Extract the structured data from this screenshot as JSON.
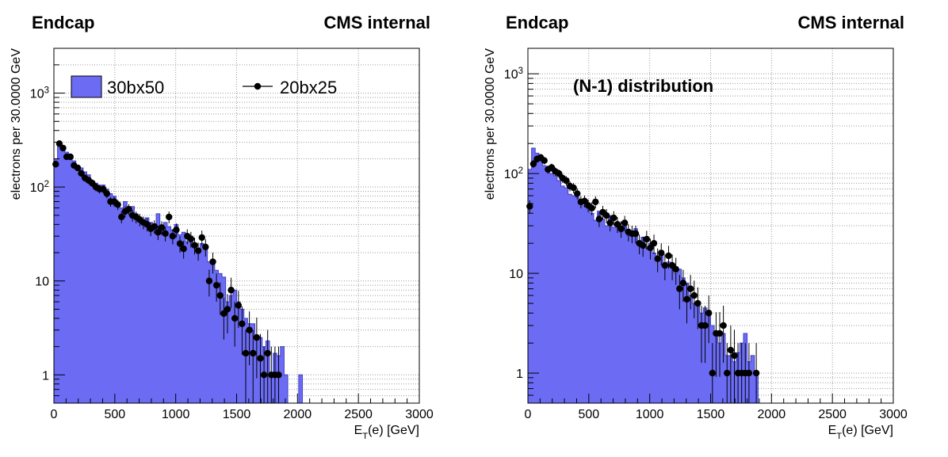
{
  "colors": {
    "fill": "#6b6bf4",
    "edge": "#3f3fc8",
    "points": "#000000",
    "grid": "#9a9a9a"
  },
  "chart_data": [
    {
      "type": "histogram",
      "title": "Endcap",
      "corner_label": "CMS internal",
      "annotation": "",
      "xlabel": "E_T(e) [GeV]",
      "ylabel": "electrons per 30.0000 GeV",
      "xlim": [
        0,
        3000
      ],
      "ylim": [
        0.5,
        3000
      ],
      "yscale": "log",
      "grid": true,
      "bin_width": 30,
      "xticks": [
        0,
        500,
        1000,
        1500,
        2000,
        2500,
        3000
      ],
      "yticks": [
        {
          "value": 1,
          "label": "1"
        },
        {
          "value": 10,
          "label": "10"
        },
        {
          "value": 100,
          "label": "10^2"
        },
        {
          "value": 1000,
          "label": "10^3"
        }
      ],
      "legend": {
        "entries": [
          "30bx50",
          "20bx25"
        ],
        "placement": "top"
      },
      "series": [
        {
          "name": "30bx50",
          "style": "filled-histogram",
          "values": [
            195,
            285,
            270,
            235,
            215,
            190,
            170,
            160,
            145,
            135,
            115,
            110,
            105,
            105,
            95,
            85,
            80,
            68,
            60,
            70,
            58,
            62,
            52,
            48,
            44,
            47,
            42,
            38,
            52,
            34,
            42,
            38,
            35,
            40,
            31,
            33,
            26,
            30,
            24,
            22,
            25,
            24,
            16,
            15,
            13,
            12,
            11,
            6,
            7,
            8,
            6,
            5,
            4,
            3.5,
            3.5,
            2.5,
            2.5,
            2,
            2.3,
            1,
            1.7,
            1.6,
            2,
            1,
            0,
            0,
            0,
            1
          ]
        },
        {
          "name": "20bx25",
          "style": "points-with-errors",
          "points": [
            [
              15,
              175
            ],
            [
              45,
              290
            ],
            [
              75,
              260
            ],
            [
              105,
              210
            ],
            [
              135,
              210
            ],
            [
              165,
              170
            ],
            [
              195,
              160
            ],
            [
              225,
              140
            ],
            [
              255,
              125
            ],
            [
              285,
              118
            ],
            [
              315,
              110
            ],
            [
              345,
              100
            ],
            [
              375,
              95
            ],
            [
              405,
              95
            ],
            [
              435,
              85
            ],
            [
              465,
              70
            ],
            [
              495,
              70
            ],
            [
              525,
              65
            ],
            [
              555,
              48
            ],
            [
              585,
              55
            ],
            [
              615,
              58
            ],
            [
              645,
              50
            ],
            [
              675,
              48
            ],
            [
              705,
              45
            ],
            [
              735,
              42
            ],
            [
              765,
              40
            ],
            [
              795,
              36
            ],
            [
              825,
              38
            ],
            [
              855,
              33
            ],
            [
              885,
              37
            ],
            [
              915,
              32
            ],
            [
              945,
              48
            ],
            [
              975,
              30
            ],
            [
              1005,
              35
            ],
            [
              1035,
              25
            ],
            [
              1065,
              22
            ],
            [
              1095,
              30
            ],
            [
              1125,
              28
            ],
            [
              1155,
              24
            ],
            [
              1185,
              21
            ],
            [
              1215,
              29
            ],
            [
              1245,
              23
            ],
            [
              1275,
              10
            ],
            [
              1305,
              16
            ],
            [
              1335,
              9
            ],
            [
              1365,
              7
            ],
            [
              1395,
              4.5
            ],
            [
              1425,
              5
            ],
            [
              1455,
              8
            ],
            [
              1485,
              4
            ],
            [
              1515,
              5.5
            ],
            [
              1545,
              3.5
            ],
            [
              1575,
              1.7
            ],
            [
              1605,
              3
            ],
            [
              1635,
              1.7
            ],
            [
              1665,
              2.5
            ],
            [
              1695,
              1.5
            ],
            [
              1725,
              1
            ],
            [
              1755,
              1.7
            ],
            [
              1785,
              1
            ],
            [
              1815,
              1
            ],
            [
              1845,
              1
            ]
          ]
        }
      ]
    },
    {
      "type": "histogram",
      "title": "Endcap",
      "corner_label": "CMS internal",
      "annotation": "(N-1) distribution",
      "xlabel": "E_T(e) [GeV]",
      "ylabel": "electrons per 30.0000 GeV",
      "xlim": [
        0,
        3000
      ],
      "ylim": [
        0.5,
        1800
      ],
      "yscale": "log",
      "grid": true,
      "bin_width": 30,
      "xticks": [
        0,
        500,
        1000,
        1500,
        2000,
        2500,
        3000
      ],
      "yticks": [
        {
          "value": 1,
          "label": "1"
        },
        {
          "value": 10,
          "label": "10"
        },
        {
          "value": 100,
          "label": "10^2"
        },
        {
          "value": 1000,
          "label": "10^3"
        }
      ],
      "legend": null,
      "series": [
        {
          "name": "",
          "style": "filled-histogram",
          "values": [
            110,
            180,
            160,
            140,
            120,
            110,
            100,
            95,
            85,
            75,
            72,
            62,
            60,
            58,
            52,
            48,
            45,
            40,
            34,
            42,
            35,
            30,
            38,
            29,
            30,
            26,
            34,
            24,
            25,
            28,
            21,
            23,
            18,
            20,
            16,
            15,
            17,
            12,
            13,
            12,
            10,
            11,
            9,
            8,
            6,
            5,
            5,
            4,
            4.5,
            4,
            3,
            2.5,
            2,
            2.5,
            1.5,
            1.5,
            1.3,
            1.6,
            2,
            2.5,
            1.3,
            1.5,
            1
          ]
        },
        {
          "name": "",
          "style": "points-with-errors",
          "points": [
            [
              15,
              47
            ],
            [
              45,
              125
            ],
            [
              75,
              140
            ],
            [
              105,
              145
            ],
            [
              135,
              135
            ],
            [
              165,
              110
            ],
            [
              195,
              115
            ],
            [
              225,
              105
            ],
            [
              255,
              100
            ],
            [
              285,
              90
            ],
            [
              315,
              85
            ],
            [
              345,
              75
            ],
            [
              375,
              72
            ],
            [
              405,
              63
            ],
            [
              435,
              52
            ],
            [
              465,
              53
            ],
            [
              495,
              48
            ],
            [
              525,
              45
            ],
            [
              555,
              52
            ],
            [
              585,
              35
            ],
            [
              615,
              41
            ],
            [
              645,
              38
            ],
            [
              675,
              32
            ],
            [
              705,
              36
            ],
            [
              735,
              31
            ],
            [
              765,
              28
            ],
            [
              795,
              32
            ],
            [
              825,
              26
            ],
            [
              855,
              25
            ],
            [
              885,
              25
            ],
            [
              915,
              20
            ],
            [
              945,
              19
            ],
            [
              975,
              22
            ],
            [
              1005,
              18
            ],
            [
              1035,
              20
            ],
            [
              1065,
              14
            ],
            [
              1095,
              16
            ],
            [
              1125,
              12
            ],
            [
              1155,
              15
            ],
            [
              1185,
              12
            ],
            [
              1215,
              11
            ],
            [
              1245,
              7
            ],
            [
              1275,
              8
            ],
            [
              1305,
              5.5
            ],
            [
              1335,
              7
            ],
            [
              1365,
              6
            ],
            [
              1395,
              5
            ],
            [
              1425,
              3
            ],
            [
              1455,
              3
            ],
            [
              1485,
              4
            ],
            [
              1515,
              1
            ],
            [
              1545,
              2.5
            ],
            [
              1575,
              2.5
            ],
            [
              1605,
              3
            ],
            [
              1635,
              1
            ],
            [
              1665,
              1.7
            ],
            [
              1695,
              1.5
            ],
            [
              1725,
              1
            ],
            [
              1755,
              1
            ],
            [
              1785,
              1
            ],
            [
              1815,
              1
            ],
            [
              1875,
              1
            ]
          ]
        }
      ]
    }
  ]
}
